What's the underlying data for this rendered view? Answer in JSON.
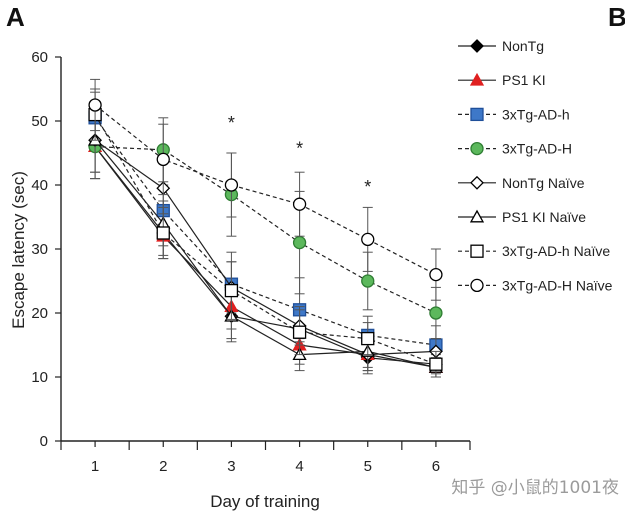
{
  "panel_labels": {
    "left": "A",
    "right": "B"
  },
  "watermark": "知乎 @小鼠的1001夜",
  "chart_data": {
    "type": "line",
    "title": "",
    "xlabel": "Day of training",
    "ylabel": "Escape latency (sec)",
    "x": [
      1,
      2,
      3,
      4,
      5,
      6
    ],
    "xlim": [
      0.5,
      6.5
    ],
    "ylim": [
      0,
      60
    ],
    "yticks": [
      0,
      10,
      20,
      30,
      40,
      50,
      60
    ],
    "grid": false,
    "legend_position": "right",
    "significance_marks": [
      {
        "x": 3,
        "y": 50,
        "text": "*"
      },
      {
        "x": 4,
        "y": 46,
        "text": "*"
      },
      {
        "x": 5,
        "y": 40,
        "text": "*"
      }
    ],
    "series": [
      {
        "name": "NonTg",
        "marker": "diamond",
        "fill": "#000000",
        "stroke": "#000000",
        "dash": "solid",
        "values": [
          46,
          32.5,
          19.5,
          17.5,
          13,
          12
        ],
        "err": [
          5,
          3.5,
          3.5,
          3,
          2.5,
          1.5
        ]
      },
      {
        "name": "PS1 KI",
        "marker": "triangle",
        "fill": "#e02020",
        "stroke": "#e02020",
        "dash": "solid",
        "values": [
          46,
          32,
          21,
          15,
          13.5,
          11.5
        ],
        "err": [
          5,
          3.5,
          3.5,
          3,
          2.5,
          1.5
        ]
      },
      {
        "name": "3xTg-AD-h",
        "marker": "square",
        "fill": "#3e78c8",
        "stroke": "#1f4f99",
        "dash": "dashed",
        "values": [
          50.5,
          36,
          24.5,
          20.5,
          16.5,
          15
        ],
        "err": [
          4,
          4,
          5,
          5,
          3,
          3
        ]
      },
      {
        "name": "3xTg-AD-H",
        "marker": "circle",
        "fill": "#5cb85c",
        "stroke": "#2e7d32",
        "dash": "dashed",
        "values": [
          46,
          45.5,
          38.5,
          31,
          25,
          20
        ],
        "err": [
          5,
          5,
          6.5,
          8,
          4.5,
          4
        ]
      },
      {
        "name": "NonTg Naïve",
        "marker": "diamond",
        "fill": "#ffffff",
        "stroke": "#000000",
        "dash": "solid",
        "values": [
          47,
          39.5,
          24,
          18,
          13.5,
          14
        ],
        "err": [
          5,
          4,
          4,
          3,
          2.5,
          2
        ]
      },
      {
        "name": "PS1 KI Naïve",
        "marker": "triangle",
        "fill": "#ffffff",
        "stroke": "#000000",
        "dash": "solid",
        "values": [
          47,
          34,
          19.5,
          13.5,
          14,
          11.5
        ],
        "err": [
          5,
          3.5,
          4,
          2.5,
          2.5,
          1.5
        ]
      },
      {
        "name": "3xTg-AD-h Naïve",
        "marker": "square",
        "fill": "#ffffff",
        "stroke": "#000000",
        "dash": "dashed",
        "values": [
          51,
          32.5,
          23.5,
          17,
          16,
          12
        ],
        "err": [
          4,
          4,
          4.5,
          3.5,
          2.5,
          2
        ]
      },
      {
        "name": "3xTg-AD-H Naïve",
        "marker": "circle",
        "fill": "#ffffff",
        "stroke": "#000000",
        "dash": "dashed",
        "values": [
          52.5,
          44,
          40,
          37,
          31.5,
          26
        ],
        "err": [
          4,
          5.5,
          5,
          5,
          5,
          4
        ]
      }
    ]
  }
}
